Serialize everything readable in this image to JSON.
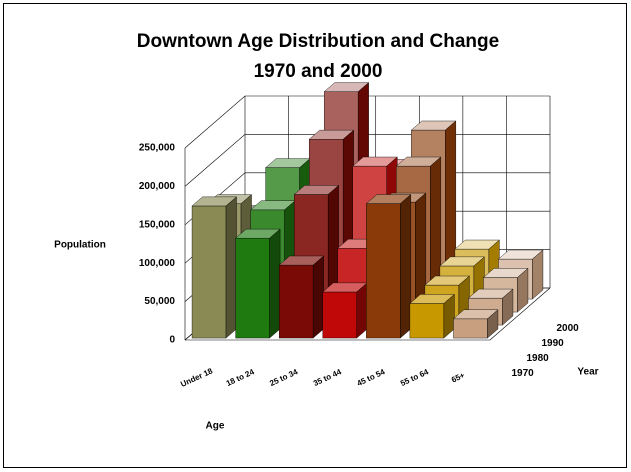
{
  "chart_data": {
    "type": "bar3d",
    "title": [
      "Downtown Age Distribution and Change",
      "1970 and 2000"
    ],
    "ylabel": "Population",
    "xlabel": "Age",
    "zlabel": "Year",
    "categories": [
      "Under 18",
      "18 to 24",
      "25 to 34",
      "35 to 44",
      "45 to 54",
      "55 to 64",
      "65+"
    ],
    "colors": [
      "#8a8a55",
      "#1f7a10",
      "#7a0a05",
      "#c00808",
      "#8a3a08",
      "#c89800",
      "#c8a080"
    ],
    "series": [
      {
        "name": "1970",
        "values": [
          172000,
          130000,
          95000,
          60000,
          175000,
          45000,
          25000
        ]
      },
      {
        "name": "1980",
        "values": [
          158000,
          150000,
          170000,
          100000,
          160000,
          52000,
          35000
        ]
      },
      {
        "name": "1990",
        "values": [
          125000,
          188000,
          225000,
          190000,
          190000,
          60000,
          45000
        ]
      },
      {
        "name": "2000",
        "values": [
          110000,
          160000,
          270000,
          170000,
          220000,
          65000,
          52000
        ]
      }
    ],
    "ylim": [
      0,
      250000
    ],
    "yticks": [
      {
        "value": 0,
        "label": "0"
      },
      {
        "value": 50000,
        "label": "50,000"
      },
      {
        "value": 100000,
        "label": "100,000"
      },
      {
        "value": 150000,
        "label": "150,000"
      },
      {
        "value": 200000,
        "label": "200,000"
      },
      {
        "value": 250000,
        "label": "250,000"
      }
    ],
    "grid": true
  }
}
